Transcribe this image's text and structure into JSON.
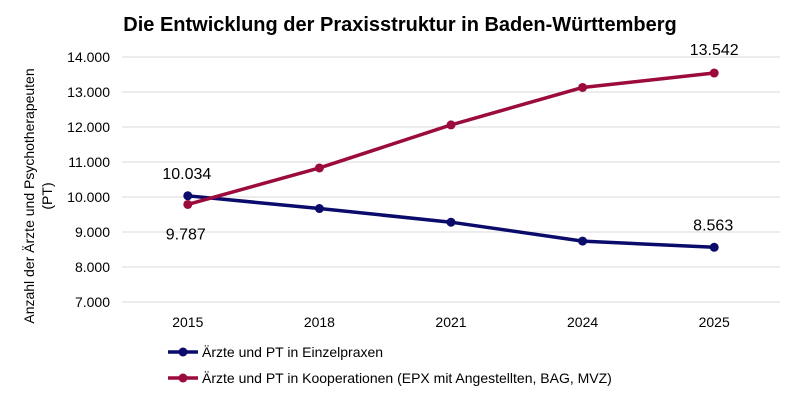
{
  "chart_data": {
    "type": "line",
    "title": "Die Entwicklung der Praxisstruktur in Baden-Württemberg",
    "ylabel_line1": "Anzahl der Ärzte und Psychotherapeuten",
    "ylabel_line2": "(PT)",
    "xlabel": "",
    "categories": [
      "2015",
      "2018",
      "2021",
      "2024",
      "2025"
    ],
    "ylim": [
      7000,
      14000
    ],
    "yticks": [
      7000,
      8000,
      9000,
      10000,
      11000,
      12000,
      13000,
      14000
    ],
    "ytick_labels": [
      "7.000",
      "8.000",
      "9.000",
      "10.000",
      "11.000",
      "12.000",
      "13.000",
      "14.000"
    ],
    "grid": true,
    "legend_position": "bottom-left",
    "series": [
      {
        "name": "Ärzte und PT in Einzelpraxen",
        "color": "#0b0b6b",
        "values": [
          10034,
          9670,
          9280,
          8740,
          8563
        ],
        "data_labels": [
          "10.034",
          "",
          "",
          "",
          "8.563"
        ]
      },
      {
        "name": "Ärzte und PT in Kooperationen (EPX mit Angestellten, BAG, MVZ)",
        "color": "#9b0b3e",
        "values": [
          9787,
          10830,
          12060,
          13130,
          13542
        ],
        "data_labels": [
          "9.787",
          "",
          "",
          "",
          "13.542"
        ]
      }
    ]
  }
}
